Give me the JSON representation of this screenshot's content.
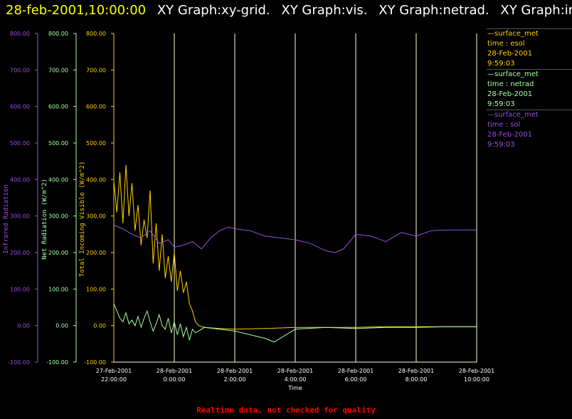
{
  "header": {
    "timestamp": "28-feb-2001,10:00:00",
    "graphs": [
      "XY Graph:xy-grid.",
      "XY Graph:vis.",
      "XY Graph:netrad.",
      "XY Graph:ir."
    ]
  },
  "colors": {
    "timestamp": "#ffff00",
    "graph_titles": "#ffffff",
    "infrared": "#9a4de0",
    "netrad": "#a8ffa8",
    "visible": "#ffd000",
    "grid": "#ffffd0",
    "footer": "#ff0000"
  },
  "legend": [
    {
      "name": "surface_met",
      "variable": "time : esol",
      "date": "28-Feb-2001",
      "time": "9:59:03",
      "color": "#ffd000"
    },
    {
      "name": "surface_met",
      "variable": "time : netrad",
      "date": "28-Feb-2001",
      "time": "9:59:03",
      "color": "#a8ffa8"
    },
    {
      "name": "surface_met",
      "variable": "time : sol",
      "date": "28-Feb-2001",
      "time": "9:59:03",
      "color": "#9a4de0"
    }
  ],
  "footer": "Realtime data, not checked for quality",
  "chart_data": {
    "type": "line",
    "xlabel": "Time",
    "x_ticks": [
      {
        "date": "27-Feb-2001",
        "time": "22:00:00"
      },
      {
        "date": "28-Feb-2001",
        "time": "0:00:00"
      },
      {
        "date": "28-Feb-2001",
        "time": "2:00:00"
      },
      {
        "date": "28-Feb-2001",
        "time": "4:00:00"
      },
      {
        "date": "28-Feb-2001",
        "time": "6:00:00"
      },
      {
        "date": "28-Feb-2001",
        "time": "8:00:00"
      },
      {
        "date": "28-Feb-2001",
        "time": "10:00:00"
      }
    ],
    "xlim": [
      "27-Feb-2001 22:00:00",
      "28-Feb-2001 10:00:00"
    ],
    "x_unit": "hours after 27-Feb-2001 22:00:00 (x values below)",
    "y_axes": [
      {
        "label": "Infrared Radiation",
        "ylim": [
          -100,
          800
        ],
        "color": "#9a4de0"
      },
      {
        "label": "Net Radiation (W/m^2)",
        "ylim": [
          -100,
          800
        ],
        "color": "#a8ffa8"
      },
      {
        "label": "Total Incoming Visible (W/m^2)",
        "ylim": [
          -100,
          800
        ],
        "color": "#ffd000"
      }
    ],
    "y_tick_labels": [
      "800.00",
      "700.00",
      "600.00",
      "500.00",
      "400.00",
      "300.00",
      "200.00",
      "100.00",
      "0.00",
      "-100.00"
    ],
    "grid": "vertical lines at x ticks",
    "series": [
      {
        "name": "Total Incoming Visible (W/m^2)",
        "color": "#ffd000",
        "x": [
          0,
          0.1,
          0.2,
          0.3,
          0.4,
          0.5,
          0.6,
          0.7,
          0.8,
          0.9,
          1.0,
          1.1,
          1.2,
          1.3,
          1.4,
          1.5,
          1.6,
          1.7,
          1.8,
          1.9,
          2.0,
          2.1,
          2.2,
          2.3,
          2.4,
          2.5,
          2.6,
          2.7,
          2.8,
          3.0,
          3.5,
          4.0,
          5.0,
          6.0,
          7.0,
          8.0,
          9.0,
          10.0,
          11.0,
          12.0
        ],
        "y": [
          395,
          310,
          420,
          280,
          440,
          300,
          390,
          260,
          330,
          220,
          290,
          240,
          370,
          170,
          280,
          150,
          250,
          130,
          190,
          120,
          200,
          95,
          150,
          90,
          120,
          60,
          40,
          10,
          0,
          -5,
          -8,
          -10,
          -8,
          -5,
          -5,
          -5,
          -3,
          -3,
          -3,
          -3
        ]
      },
      {
        "name": "Net Radiation (W/m^2)",
        "color": "#a8ffa8",
        "x": [
          0,
          0.1,
          0.2,
          0.3,
          0.4,
          0.5,
          0.6,
          0.7,
          0.8,
          0.9,
          1.0,
          1.1,
          1.2,
          1.3,
          1.4,
          1.5,
          1.6,
          1.7,
          1.8,
          1.9,
          2.0,
          2.1,
          2.2,
          2.3,
          2.4,
          2.5,
          2.6,
          2.7,
          2.8,
          3.0,
          3.5,
          4.0,
          4.5,
          5.0,
          5.3,
          5.8,
          6.0,
          7.0,
          8.0,
          9.0,
          10.0,
          11.0,
          12.0
        ],
        "y": [
          60,
          40,
          20,
          10,
          35,
          5,
          15,
          0,
          25,
          -5,
          20,
          40,
          10,
          -15,
          5,
          30,
          0,
          -10,
          20,
          -20,
          10,
          -25,
          5,
          -30,
          -5,
          -40,
          -10,
          -20,
          -15,
          -5,
          -10,
          -15,
          -25,
          -35,
          -45,
          -20,
          -10,
          -5,
          -8,
          -5,
          -5,
          -3,
          -3
        ]
      },
      {
        "name": "Infrared Radiation",
        "color": "#9a4de0",
        "x": [
          0,
          0.3,
          0.6,
          0.9,
          1.2,
          1.5,
          1.8,
          2.0,
          2.3,
          2.6,
          2.9,
          3.2,
          3.5,
          3.8,
          4.0,
          4.5,
          5.0,
          5.5,
          6.0,
          6.5,
          7.0,
          7.3,
          7.6,
          8.0,
          8.5,
          9.0,
          9.5,
          10.0,
          10.5,
          11.0,
          11.5,
          12.0
        ],
        "y": [
          275,
          265,
          250,
          240,
          260,
          225,
          235,
          215,
          220,
          230,
          210,
          240,
          260,
          270,
          265,
          260,
          245,
          240,
          235,
          225,
          205,
          200,
          210,
          250,
          245,
          230,
          255,
          245,
          260,
          262,
          262,
          262
        ]
      }
    ]
  }
}
